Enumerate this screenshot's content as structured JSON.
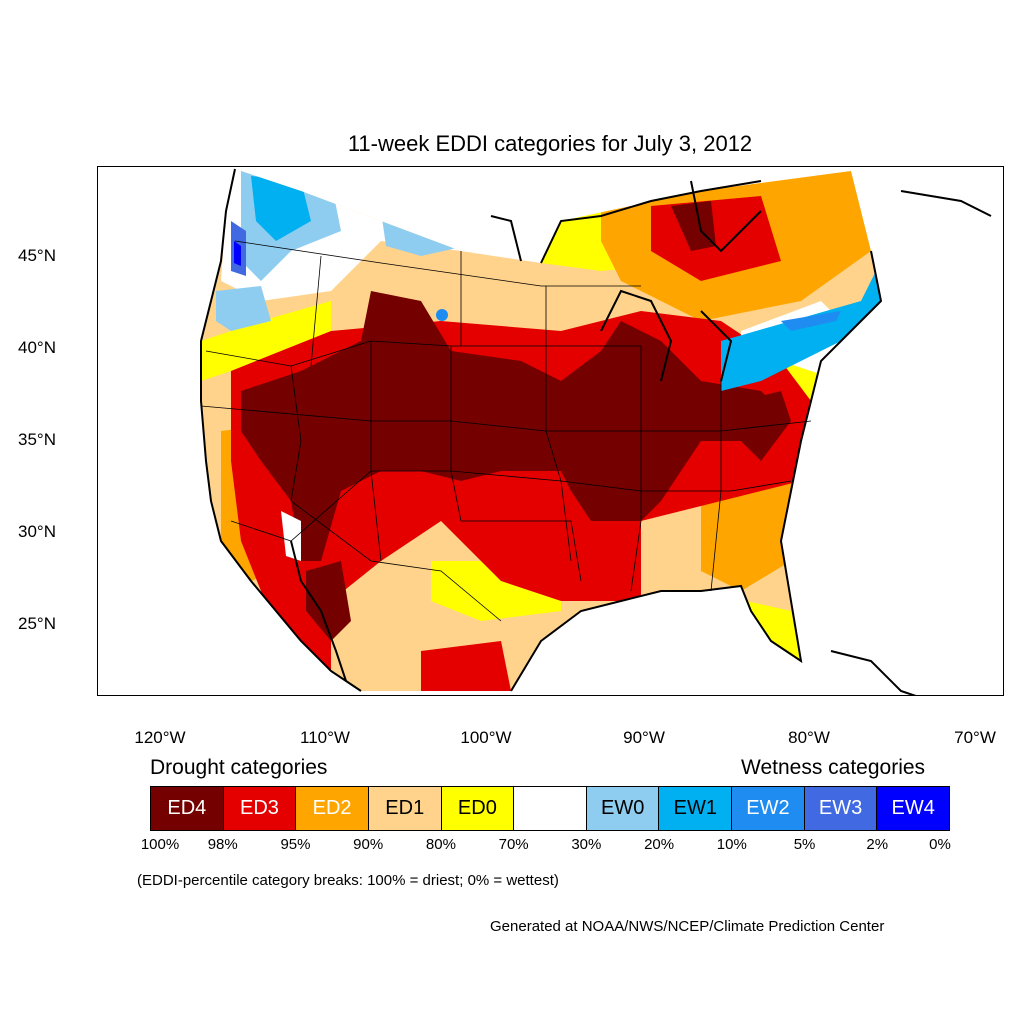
{
  "title": "11-week EDDI categories for July 3, 2012",
  "axes": {
    "lat_labels": [
      "45°N",
      "40°N",
      "35°N",
      "30°N",
      "25°N"
    ],
    "lon_labels": [
      "120°W",
      "110°W",
      "100°W",
      "90°W",
      "80°W",
      "70°W"
    ]
  },
  "legend": {
    "drought_heading": "Drought categories",
    "wetness_heading": "Wetness categories",
    "categories": [
      {
        "label": "ED4",
        "color": "#750000",
        "text_color": "#ffffff"
      },
      {
        "label": "ED3",
        "color": "#e50000",
        "text_color": "#ffffff"
      },
      {
        "label": "ED2",
        "color": "#ffa500",
        "text_color": "#ffffff"
      },
      {
        "label": "ED1",
        "color": "#ffd38b",
        "text_color": "#000000"
      },
      {
        "label": "ED0",
        "color": "#ffff00",
        "text_color": "#000000"
      },
      {
        "label": "",
        "color": "#ffffff",
        "text_color": "#000000"
      },
      {
        "label": "EW0",
        "color": "#8fcdf0",
        "text_color": "#000000"
      },
      {
        "label": "EW1",
        "color": "#00b0f0",
        "text_color": "#000000"
      },
      {
        "label": "EW2",
        "color": "#1e8cf0",
        "text_color": "#ffffff"
      },
      {
        "label": "EW3",
        "color": "#4169e1",
        "text_color": "#ffffff"
      },
      {
        "label": "EW4",
        "color": "#0000ff",
        "text_color": "#ffffff"
      }
    ],
    "percentiles": [
      "100%",
      "98%",
      "95%",
      "90%",
      "80%",
      "70%",
      "30%",
      "20%",
      "10%",
      "5%",
      "2%",
      "0%"
    ]
  },
  "note": "(EDDI-percentile category breaks: 100% = driest; 0% = wettest)",
  "credit": "Generated at NOAA/NWS/NCEP/Climate Prediction Center"
}
